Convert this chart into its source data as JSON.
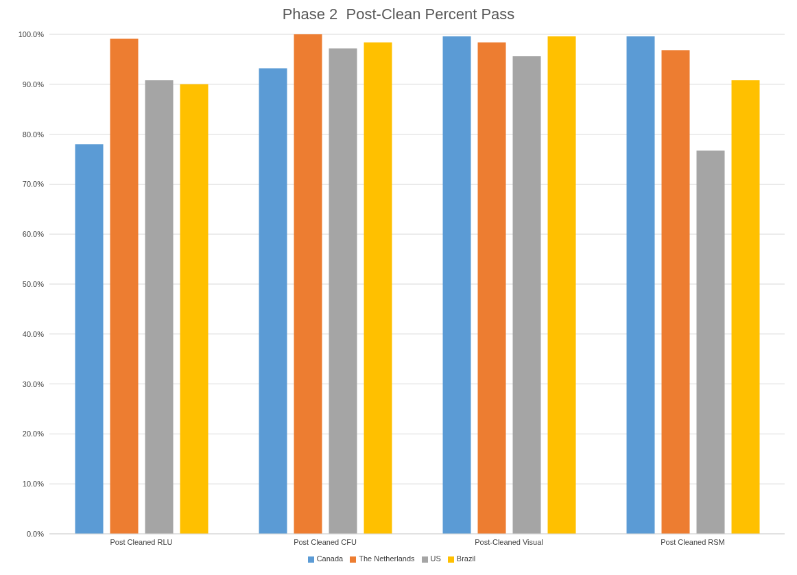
{
  "chart_data": {
    "type": "bar",
    "title": "Phase 2  Post-Clean Percent Pass",
    "categories": [
      "Post Cleaned RLU",
      "Post Cleaned CFU",
      "Post-Cleaned Visual",
      "Post Cleaned RSM"
    ],
    "series": [
      {
        "name": "Canada",
        "color": "#5b9bd5",
        "values": [
          78.0,
          93.2,
          99.6,
          99.6
        ]
      },
      {
        "name": "The Netherlands",
        "color": "#ed7d31",
        "values": [
          99.1,
          100.0,
          98.4,
          96.8
        ]
      },
      {
        "name": "US",
        "color": "#a5a5a5",
        "values": [
          90.8,
          97.2,
          95.6,
          76.7
        ]
      },
      {
        "name": "Brazil",
        "color": "#ffc000",
        "values": [
          90.0,
          98.4,
          99.6,
          90.8
        ]
      }
    ],
    "ylim": [
      0,
      100
    ],
    "yticks": [
      {
        "value": 0,
        "label": "0.0%"
      },
      {
        "value": 10,
        "label": "10.0%"
      },
      {
        "value": 20,
        "label": "20.0%"
      },
      {
        "value": 30,
        "label": "30.0%"
      },
      {
        "value": 40,
        "label": "40.0%"
      },
      {
        "value": 50,
        "label": "50.0%"
      },
      {
        "value": 60,
        "label": "60.0%"
      },
      {
        "value": 70,
        "label": "70.0%"
      },
      {
        "value": 80,
        "label": "80.0%"
      },
      {
        "value": 90,
        "label": "90.0%"
      },
      {
        "value": 100,
        "label": "100.0%"
      }
    ],
    "grid": "y",
    "legend": "bottom"
  }
}
